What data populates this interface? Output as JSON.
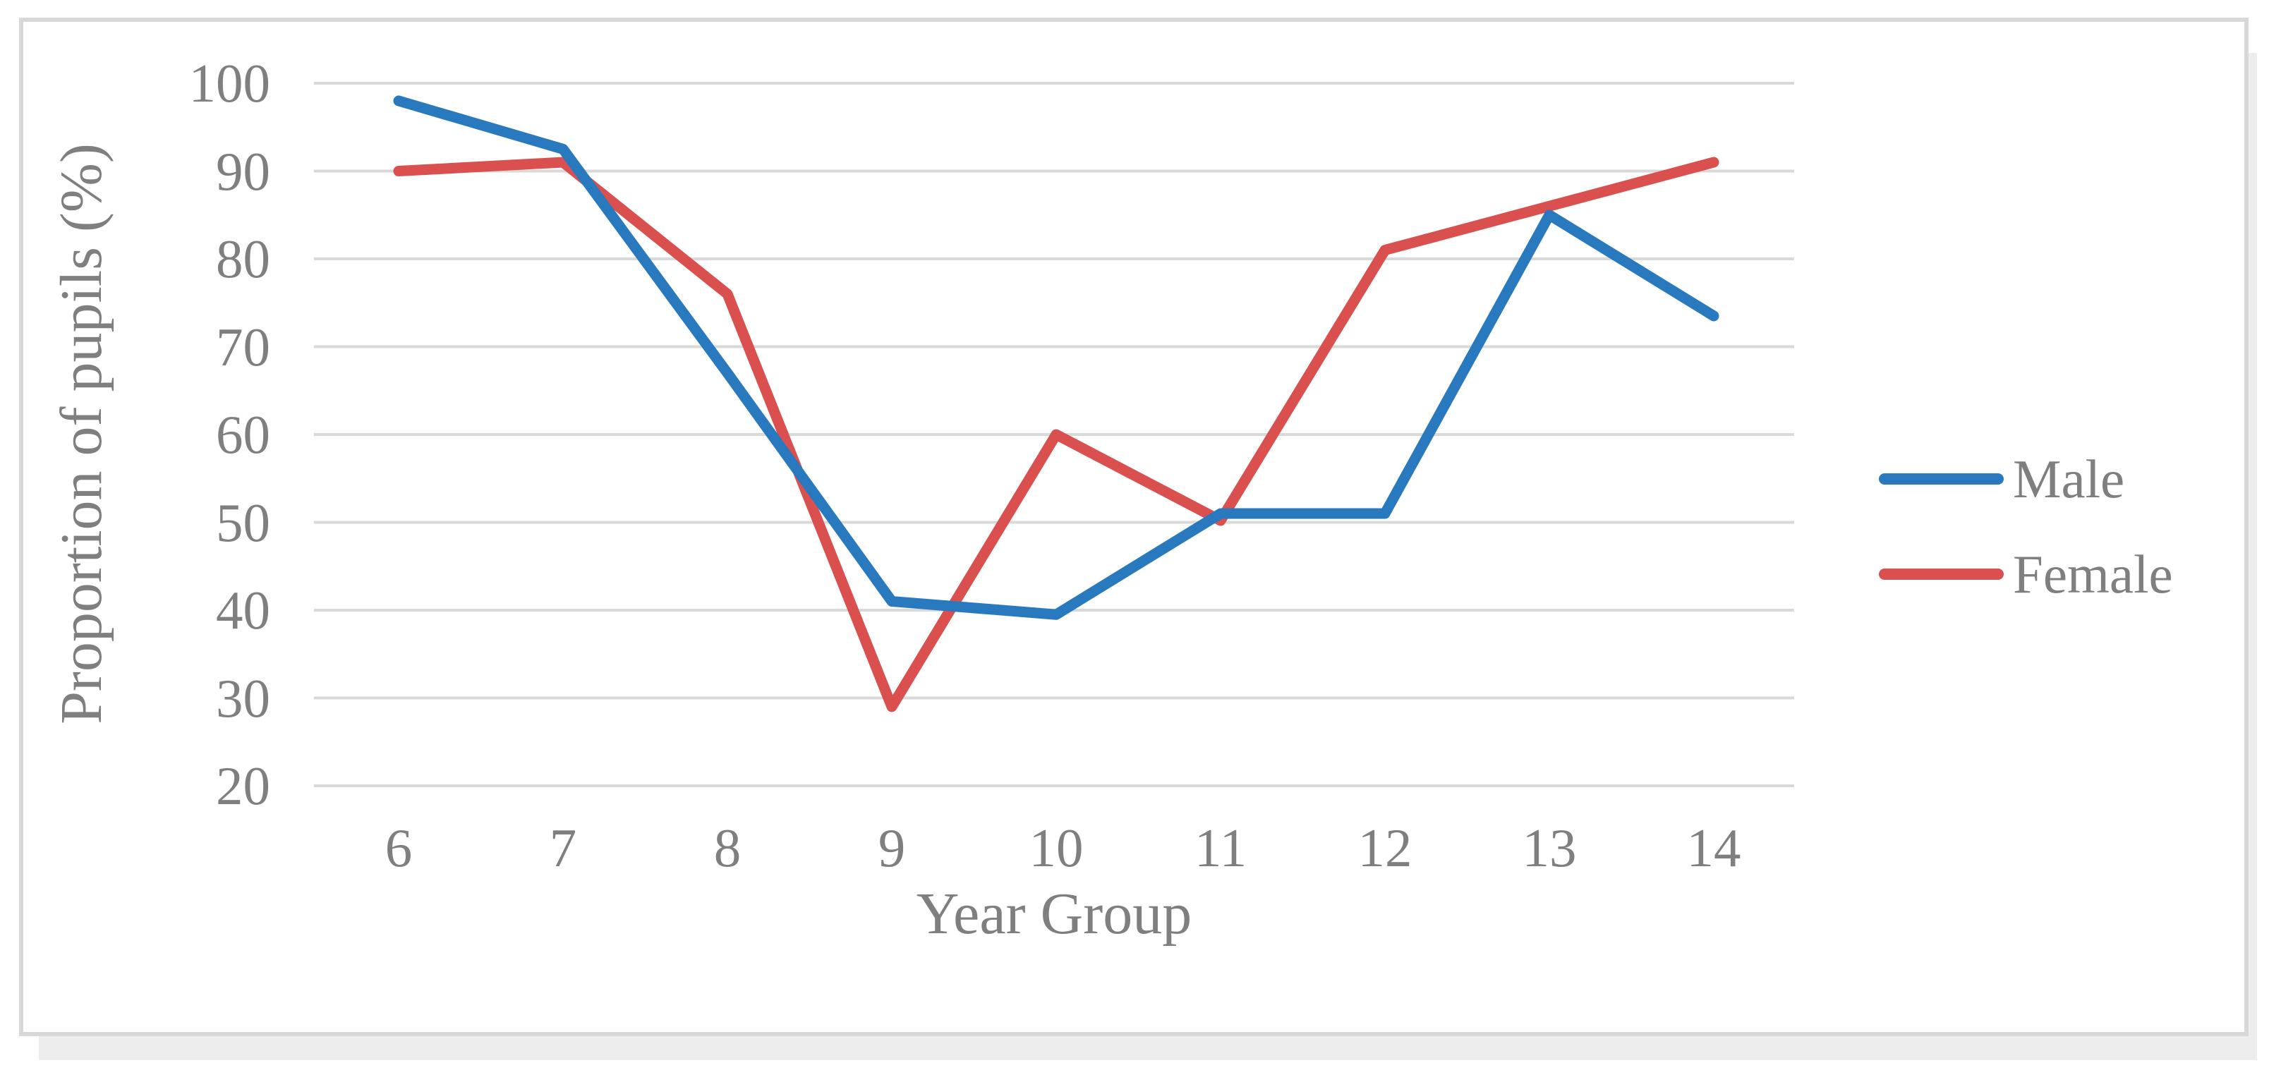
{
  "chart_data": {
    "type": "line",
    "title": "",
    "xlabel": "Year Group",
    "ylabel": "Proportion of pupils (%)",
    "categories": [
      "6",
      "7",
      "8",
      "9",
      "10",
      "11",
      "12",
      "13",
      "14"
    ],
    "series": [
      {
        "name": "Male",
        "color": "#2879bd",
        "values": [
          98,
          92.5,
          67,
          41,
          39.5,
          51,
          51,
          85,
          73.5
        ]
      },
      {
        "name": "Female",
        "color": "#d9504e",
        "values": [
          90,
          91,
          76,
          29,
          60,
          50.2,
          81,
          86,
          91
        ]
      }
    ],
    "ylim": [
      20,
      100
    ],
    "yticks": [
      100,
      90,
      80,
      70,
      60,
      50,
      40,
      30,
      20
    ],
    "grid": "horizontal",
    "gridline_color": "#d9d9d9",
    "legend_position": "right",
    "legend_order": [
      "Male",
      "Female"
    ],
    "text_color": "#7f7f7f",
    "figure_border_color": "#d8d8d8",
    "figure_shadow_color": "#ededed",
    "plot_background": "#ffffff"
  }
}
